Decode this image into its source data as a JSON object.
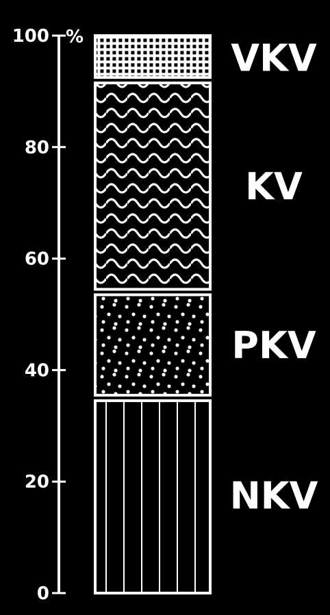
{
  "chart_data": {
    "type": "bar",
    "stacked": true,
    "ylim": [
      0,
      100
    ],
    "unit": "%",
    "ticks": [
      {
        "value": 0,
        "label": "0"
      },
      {
        "value": 20,
        "label": "20"
      },
      {
        "value": 40,
        "label": "40"
      },
      {
        "value": 60,
        "label": "60"
      },
      {
        "value": 80,
        "label": "80"
      },
      {
        "value": 100,
        "label": "100"
      }
    ],
    "segments": [
      {
        "name": "NKV",
        "from": 0,
        "to": 35,
        "pattern": "vertical-lines"
      },
      {
        "name": "PKV",
        "from": 35,
        "to": 54,
        "pattern": "dots"
      },
      {
        "name": "KV",
        "from": 54,
        "to": 92,
        "pattern": "waves"
      },
      {
        "name": "VKV",
        "from": 92,
        "to": 100,
        "pattern": "grid"
      }
    ],
    "colors": {
      "background": "#000000",
      "foreground": "#ffffff"
    }
  }
}
